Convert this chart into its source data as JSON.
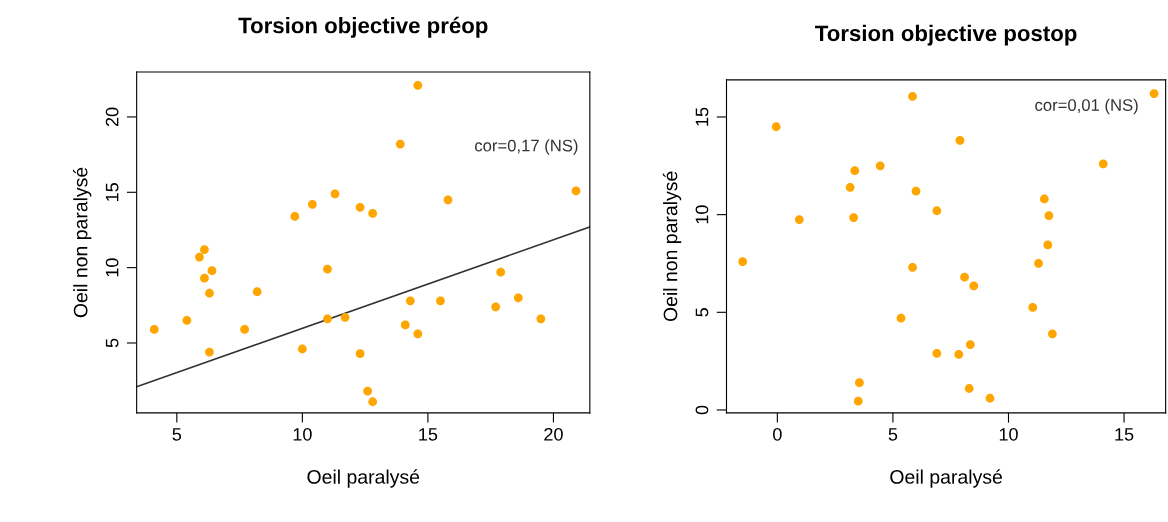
{
  "chart_data": [
    {
      "type": "scatter",
      "title": "Torsion objective préop",
      "xlabel": "Oeil paralysé",
      "ylabel": "Oeil non paralysé",
      "xlim": [
        3.4,
        21.45
      ],
      "ylim": [
        0.36,
        22.98
      ],
      "xticks": [
        5,
        10,
        15,
        20
      ],
      "yticks": [
        5,
        10,
        15,
        20
      ],
      "grid": false,
      "annotations": [
        "cor=0,17 (NS)"
      ],
      "series": [
        {
          "marker": "circle",
          "color": "#ffa500",
          "x": [
            4.1,
            5.4,
            5.9,
            6.1,
            6.1,
            6.3,
            6.4,
            6.3,
            7.7,
            8.2,
            9.7,
            10.0,
            10.4,
            11.0,
            11.0,
            11.3,
            11.7,
            12.3,
            12.3,
            12.6,
            12.8,
            12.8,
            13.9,
            14.1,
            14.3,
            14.6,
            14.6,
            15.5,
            15.8,
            17.7,
            17.9,
            18.6,
            19.5,
            20.9
          ],
          "values": [
            5.9,
            6.5,
            10.7,
            9.3,
            11.2,
            8.3,
            9.8,
            4.4,
            5.9,
            8.4,
            13.4,
            4.6,
            14.2,
            6.6,
            9.9,
            14.9,
            6.7,
            14.0,
            4.3,
            1.8,
            13.6,
            1.1,
            18.2,
            6.2,
            7.8,
            22.1,
            5.6,
            7.8,
            14.5,
            7.4,
            9.7,
            8.0,
            6.6,
            15.1
          ]
        },
        {
          "type": "line",
          "color": "#333333",
          "x": [
            3.4,
            21.45
          ],
          "values": [
            2.1,
            12.7
          ]
        }
      ]
    },
    {
      "type": "scatter",
      "title": "Torsion objective postop",
      "xlabel": "Oeil paralysé",
      "ylabel": "Oeil non paralysé",
      "xlim": [
        -2.2,
        16.8
      ],
      "ylim": [
        -0.15,
        16.9
      ],
      "xticks": [
        0,
        5,
        10,
        15
      ],
      "yticks": [
        0,
        5,
        10,
        15
      ],
      "grid": false,
      "annotations": [
        "cor=0,01 (NS)"
      ],
      "series": [
        {
          "marker": "circle",
          "color": "#ffa500",
          "x": [
            -1.5,
            -0.05,
            0.95,
            3.15,
            3.35,
            3.3,
            3.55,
            3.5,
            4.45,
            5.35,
            5.85,
            5.85,
            6.0,
            6.9,
            6.9,
            7.9,
            7.85,
            8.1,
            8.35,
            8.3,
            8.5,
            9.2,
            11.05,
            11.3,
            11.55,
            11.75,
            11.7,
            11.9,
            14.1,
            16.3
          ],
          "values": [
            7.6,
            14.5,
            9.75,
            11.4,
            12.25,
            9.85,
            1.4,
            0.45,
            12.5,
            4.7,
            16.05,
            7.3,
            11.2,
            10.2,
            2.9,
            13.8,
            2.85,
            6.8,
            3.35,
            1.1,
            6.35,
            0.6,
            5.25,
            7.5,
            10.8,
            9.95,
            8.45,
            3.9,
            12.6,
            16.2
          ]
        }
      ]
    }
  ]
}
